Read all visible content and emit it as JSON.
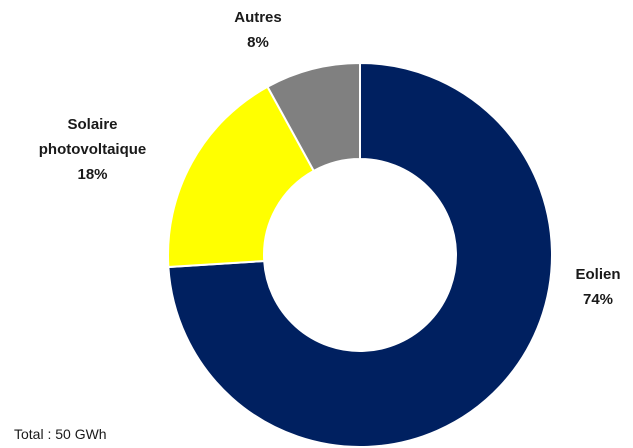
{
  "chart_data": {
    "type": "donut",
    "categories": [
      "Eolien",
      "Solaire photovoltaique",
      "Autres"
    ],
    "values": [
      74,
      18,
      8
    ],
    "value_labels": [
      "74%",
      "18%",
      "8%"
    ],
    "colors": [
      "#002060",
      "#ffff00",
      "#808080"
    ],
    "annotation": "Total : 50 GWh"
  }
}
